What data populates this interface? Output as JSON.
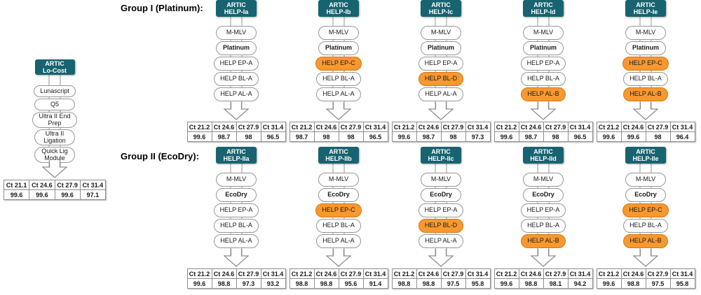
{
  "colors": {
    "header_teal": "#176370",
    "highlight_orange": "#F8982F",
    "outline_gray": "#979797",
    "background": "#FFFFFF"
  },
  "lo_cost": {
    "header": "ARTIC\nLo-Cost",
    "steps": [
      {
        "label": "Lunascript",
        "highlight": false,
        "bold": false
      },
      {
        "label": "Q5",
        "highlight": false,
        "bold": false
      },
      {
        "label": "Ultra II End\nPrep",
        "highlight": false,
        "bold": false
      },
      {
        "label": "Ultra II\nLigation",
        "highlight": false,
        "bold": false
      },
      {
        "label": "Quick Lig\nModule",
        "highlight": false,
        "bold": false
      }
    ],
    "table": {
      "headers": [
        "Ct 21.1",
        "Ct 24.6",
        "Ct 27.9",
        "Ct 31.4"
      ],
      "values": [
        "99.6",
        "99.6",
        "99.6",
        "97.1"
      ]
    }
  },
  "groups": [
    {
      "label": "Group I (Platinum):",
      "columns": [
        {
          "header": "ARTIC\nHELP-Ia",
          "steps": [
            {
              "label": "M-MLV",
              "highlight": false,
              "bold": false
            },
            {
              "label": "Platinum",
              "highlight": false,
              "bold": true
            },
            {
              "label": "HELP EP-A",
              "highlight": false,
              "bold": false
            },
            {
              "label": "HELP BL-A",
              "highlight": false,
              "bold": false
            },
            {
              "label": "HELP AL-A",
              "highlight": false,
              "bold": false
            }
          ],
          "table": {
            "headers": [
              "Ct 21.2",
              "Ct 24.6",
              "Ct 27.9",
              "Ct 31.4"
            ],
            "values": [
              "99.6",
              "98.7",
              "98",
              "96.5"
            ]
          }
        },
        {
          "header": "ARTIC\nHELP-Ib",
          "steps": [
            {
              "label": "M-MLV",
              "highlight": false,
              "bold": false
            },
            {
              "label": "Platinum",
              "highlight": false,
              "bold": true
            },
            {
              "label": "HELP EP-C",
              "highlight": true,
              "bold": false
            },
            {
              "label": "HELP BL-A",
              "highlight": false,
              "bold": false
            },
            {
              "label": "HELP AL-A",
              "highlight": false,
              "bold": false
            }
          ],
          "table": {
            "headers": [
              "Ct 21.2",
              "Ct 24.6",
              "Ct 27.9",
              "Ct 31.4"
            ],
            "values": [
              "98.7",
              "98",
              "98",
              "96.5"
            ]
          }
        },
        {
          "header": "ARTIC\nHELP-Ic",
          "steps": [
            {
              "label": "M-MLV",
              "highlight": false,
              "bold": false
            },
            {
              "label": "Platinum",
              "highlight": false,
              "bold": true
            },
            {
              "label": "HELP EP-A",
              "highlight": false,
              "bold": false
            },
            {
              "label": "HELP BL-D",
              "highlight": true,
              "bold": false
            },
            {
              "label": "HELP AL-A",
              "highlight": false,
              "bold": false
            }
          ],
          "table": {
            "headers": [
              "Ct 21.2",
              "Ct 24.6",
              "Ct 27.9",
              "Ct 31.4"
            ],
            "values": [
              "99.6",
              "98.7",
              "98",
              "97.3"
            ]
          }
        },
        {
          "header": "ARTIC\nHELP-Id",
          "steps": [
            {
              "label": "M-MLV",
              "highlight": false,
              "bold": false
            },
            {
              "label": "Platinum",
              "highlight": false,
              "bold": true
            },
            {
              "label": "HELP EP-A",
              "highlight": false,
              "bold": false
            },
            {
              "label": "HELP BL-A",
              "highlight": false,
              "bold": false
            },
            {
              "label": "HELP AL-B",
              "highlight": true,
              "bold": false
            }
          ],
          "table": {
            "headers": [
              "Ct 21.2",
              "Ct 24.6",
              "Ct 27.9",
              "Ct 31.4"
            ],
            "values": [
              "99.6",
              "98.7",
              "98",
              "96.5"
            ]
          }
        },
        {
          "header": "ARTIC\nHELP-Ie",
          "steps": [
            {
              "label": "M-MLV",
              "highlight": false,
              "bold": false
            },
            {
              "label": "Platinum",
              "highlight": false,
              "bold": true
            },
            {
              "label": "HELP EP-C",
              "highlight": true,
              "bold": false
            },
            {
              "label": "HELP BL-A",
              "highlight": false,
              "bold": false
            },
            {
              "label": "HELP AL-B",
              "highlight": true,
              "bold": false
            }
          ],
          "table": {
            "headers": [
              "Ct 21.2",
              "Ct 24.6",
              "Ct 27.9",
              "Ct 31.4"
            ],
            "values": [
              "99.6",
              "99.6",
              "98",
              "96.4"
            ]
          }
        }
      ]
    },
    {
      "label": "Group II (EcoDry):",
      "columns": [
        {
          "header": "ARTIC\nHELP-IIa",
          "steps": [
            {
              "label": "M-MLV",
              "highlight": false,
              "bold": false
            },
            {
              "label": "EcoDry",
              "highlight": false,
              "bold": true
            },
            {
              "label": "HELP EP-A",
              "highlight": false,
              "bold": false
            },
            {
              "label": "HELP BL-A",
              "highlight": false,
              "bold": false
            },
            {
              "label": "HELP AL-A",
              "highlight": false,
              "bold": false
            }
          ],
          "table": {
            "headers": [
              "Ct 21.2",
              "Ct 24.6",
              "Ct 27.9",
              "Ct 31.4"
            ],
            "values": [
              "99.6",
              "98.8",
              "97.3",
              "93.2"
            ]
          }
        },
        {
          "header": "ARTIC\nHELP-IIb",
          "steps": [
            {
              "label": "M-MLV",
              "highlight": false,
              "bold": false
            },
            {
              "label": "EcoDry",
              "highlight": false,
              "bold": true
            },
            {
              "label": "HELP EP-C",
              "highlight": true,
              "bold": false
            },
            {
              "label": "HELP BL-A",
              "highlight": false,
              "bold": false
            },
            {
              "label": "HELP AL-A",
              "highlight": false,
              "bold": false
            }
          ],
          "table": {
            "headers": [
              "Ct 21.2",
              "Ct 24.6",
              "Ct 27.9",
              "Ct 31.4"
            ],
            "values": [
              "98.8",
              "98.8",
              "95.6",
              "91.4"
            ]
          }
        },
        {
          "header": "ARTIC\nHELP-IIc",
          "steps": [
            {
              "label": "M-MLV",
              "highlight": false,
              "bold": false
            },
            {
              "label": "EcoDry",
              "highlight": false,
              "bold": true
            },
            {
              "label": "HELP EP-A",
              "highlight": false,
              "bold": false
            },
            {
              "label": "HELP BL-D",
              "highlight": true,
              "bold": false
            },
            {
              "label": "HELP AL-A",
              "highlight": false,
              "bold": false
            }
          ],
          "table": {
            "headers": [
              "Ct 21.2",
              "Ct 24.6",
              "Ct 27.9",
              "Ct 31.4"
            ],
            "values": [
              "98.8",
              "98.8",
              "97.5",
              "95.8"
            ]
          }
        },
        {
          "header": "ARTIC\nHELP-IId",
          "steps": [
            {
              "label": "M-MLV",
              "highlight": false,
              "bold": false
            },
            {
              "label": "EcoDry",
              "highlight": false,
              "bold": true
            },
            {
              "label": "HELP EP-A",
              "highlight": false,
              "bold": false
            },
            {
              "label": "HELP BL-A",
              "highlight": false,
              "bold": false
            },
            {
              "label": "HELP AL-B",
              "highlight": true,
              "bold": false
            }
          ],
          "table": {
            "headers": [
              "Ct 21.2",
              "Ct 24.6",
              "Ct 27.9",
              "Ct 31.4"
            ],
            "values": [
              "99.6",
              "98.8",
              "98.1",
              "94.2"
            ]
          }
        },
        {
          "header": "ARTIC\nHELP-IIe",
          "steps": [
            {
              "label": "M-MLV",
              "highlight": false,
              "bold": false
            },
            {
              "label": "EcoDry",
              "highlight": false,
              "bold": true
            },
            {
              "label": "HELP EP-C",
              "highlight": true,
              "bold": false
            },
            {
              "label": "HELP BL-A",
              "highlight": false,
              "bold": false
            },
            {
              "label": "HELP AL-B",
              "highlight": true,
              "bold": false
            }
          ],
          "table": {
            "headers": [
              "Ct 21.2",
              "Ct 24.6",
              "Ct 27.9",
              "Ct 31.4"
            ],
            "values": [
              "99.6",
              "98.8",
              "97.5",
              "95.8"
            ]
          }
        }
      ]
    }
  ]
}
